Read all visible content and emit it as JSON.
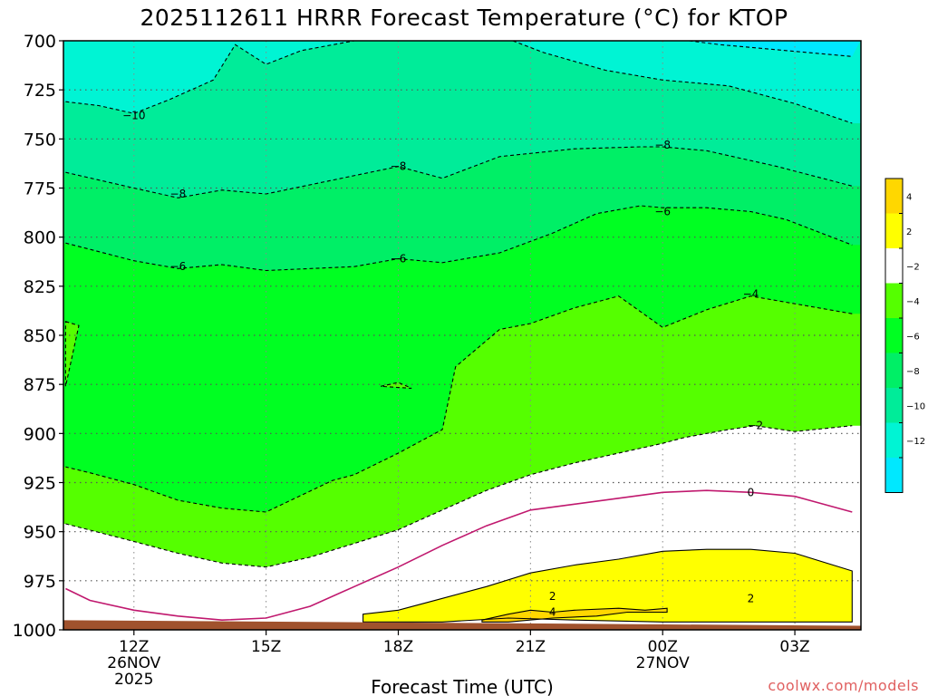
{
  "chart_data": {
    "type": "contour",
    "title": "2025112611 HRRR Forecast Temperature (°C) for KTOP",
    "xlabel": "Forecast Time (UTC)",
    "ylabel": "",
    "credit": "coolwx.com/models",
    "y_ticks": [
      "700",
      "725",
      "750",
      "775",
      "800",
      "825",
      "850",
      "875",
      "900",
      "925",
      "950",
      "975",
      "1000"
    ],
    "y_range_hpa": [
      700,
      1000
    ],
    "x_range_hours": [
      -1.6,
      16.5
    ],
    "x_ticks": [
      {
        "hour": 0,
        "lines": [
          "12Z",
          "26NOV",
          "2025"
        ]
      },
      {
        "hour": 3,
        "lines": [
          "15Z"
        ]
      },
      {
        "hour": 6,
        "lines": [
          "18Z"
        ]
      },
      {
        "hour": 9,
        "lines": [
          "21Z"
        ]
      },
      {
        "hour": 12,
        "lines": [
          "00Z",
          "27NOV"
        ]
      },
      {
        "hour": 15,
        "lines": [
          "03Z"
        ]
      }
    ],
    "colorbar": {
      "ticks": [
        "4",
        "2",
        "−2",
        "−4",
        "−6",
        "−8",
        "−10",
        "−12"
      ],
      "colors_top_to_bottom": [
        "#ffd700",
        "#ffff00",
        "#ffffff",
        "#55ff00",
        "#00ff22",
        "#00ef66",
        "#00ec99",
        "#00f4d4",
        "#00e8ff"
      ]
    },
    "fill_colors": {
      "lt_-12": "#00e8ff",
      "-12_-10": "#00f4d4",
      "-10_-8": "#00ec99",
      "-8_-6": "#00ef66",
      "-6_-4": "#00ff22",
      "-4_-2": "#55ff00",
      "-2_2": "#ffffff",
      "2_4": "#ffff00",
      "gt_4": "#ffd700",
      "ground": "#a0522d"
    },
    "contours": [
      {
        "value": -12,
        "label": "",
        "points": [
          [
            12.6,
            700
          ],
          [
            13.3,
            702
          ],
          [
            14.8,
            705
          ],
          [
            16.3,
            708
          ]
        ]
      },
      {
        "value": -10,
        "label": "−10",
        "label_at": [
          0,
          738
        ],
        "points": [
          [
            -1.55,
            731
          ],
          [
            -0.8,
            733
          ],
          [
            0,
            737
          ],
          [
            0.8,
            730
          ],
          [
            1.8,
            720
          ],
          [
            2.3,
            702
          ],
          [
            3.0,
            712
          ],
          [
            3.8,
            705
          ],
          [
            5.0,
            700
          ]
        ]
      },
      {
        "value": -10,
        "label": "",
        "points": [
          [
            8.6,
            700
          ],
          [
            9.3,
            706
          ],
          [
            10.7,
            715
          ],
          [
            12.0,
            720
          ],
          [
            13.5,
            723
          ],
          [
            15.0,
            732
          ],
          [
            16.3,
            742
          ]
        ]
      },
      {
        "value": -8,
        "label": "−8",
        "label_at": [
          1.0,
          778
        ],
        "secondary_labels": [
          [
            6.0,
            764
          ],
          [
            12.0,
            753
          ]
        ],
        "points": [
          [
            -1.55,
            767
          ],
          [
            0,
            775
          ],
          [
            1.0,
            780
          ],
          [
            2.0,
            776
          ],
          [
            3.0,
            778
          ],
          [
            6.0,
            764
          ],
          [
            7.0,
            770
          ],
          [
            8.3,
            759
          ],
          [
            10.0,
            755
          ],
          [
            11.5,
            754
          ],
          [
            12.0,
            754
          ],
          [
            13.0,
            756
          ],
          [
            14.6,
            764
          ],
          [
            16.3,
            774
          ]
        ]
      },
      {
        "value": -6,
        "label": "−6",
        "label_at": [
          1.0,
          815
        ],
        "secondary_labels": [
          [
            6.0,
            811
          ],
          [
            12.0,
            787
          ]
        ],
        "points": [
          [
            -1.55,
            803
          ],
          [
            0,
            812
          ],
          [
            1.0,
            816
          ],
          [
            2.0,
            814
          ],
          [
            3.0,
            817
          ],
          [
            5.0,
            815
          ],
          [
            6.0,
            811
          ],
          [
            7.0,
            813
          ],
          [
            8.3,
            808
          ],
          [
            9.5,
            798
          ],
          [
            10.5,
            788
          ],
          [
            11.5,
            784
          ],
          [
            12.0,
            785
          ],
          [
            13.0,
            785
          ],
          [
            14.0,
            787
          ],
          [
            14.8,
            791
          ],
          [
            16.3,
            804
          ]
        ]
      },
      {
        "value": -4,
        "label": "−4",
        "label_at": [
          14.0,
          829
        ],
        "points": [
          [
            -1.55,
            843
          ],
          [
            -1.25,
            845
          ],
          [
            -1.55,
            876
          ]
        ]
      },
      {
        "value": -4,
        "label": "",
        "points": [
          [
            5.6,
            876
          ],
          [
            6.0,
            874
          ],
          [
            6.3,
            877
          ],
          [
            5.6,
            876
          ]
        ]
      },
      {
        "value": -4,
        "label": "",
        "points": [
          [
            16.3,
            839
          ],
          [
            14.0,
            830
          ],
          [
            13.0,
            837
          ],
          [
            12.0,
            846
          ],
          [
            11.0,
            830
          ],
          [
            10.0,
            836
          ],
          [
            9.0,
            844
          ],
          [
            8.3,
            847
          ],
          [
            7.3,
            866
          ],
          [
            7.0,
            898
          ],
          [
            6.0,
            910
          ],
          [
            5.0,
            921
          ],
          [
            4.5,
            924
          ],
          [
            3.0,
            940
          ],
          [
            2.0,
            938
          ],
          [
            1.0,
            934
          ],
          [
            0,
            926
          ],
          [
            -1.0,
            920
          ],
          [
            -1.55,
            917
          ]
        ]
      },
      {
        "value": -2,
        "label": "−2",
        "label_at": [
          14.1,
          896
        ],
        "points": [
          [
            -1.55,
            946
          ],
          [
            0,
            955
          ],
          [
            1.0,
            961
          ],
          [
            2.0,
            966
          ],
          [
            3.0,
            968
          ],
          [
            4.0,
            963
          ],
          [
            6.0,
            949
          ],
          [
            7.0,
            939
          ],
          [
            8.0,
            929
          ],
          [
            9.0,
            921
          ],
          [
            10.0,
            915
          ],
          [
            11.0,
            910
          ],
          [
            12.0,
            905
          ],
          [
            12.5,
            902
          ],
          [
            13.5,
            898
          ],
          [
            14.1,
            896
          ],
          [
            15.0,
            899
          ],
          [
            16.3,
            896
          ]
        ]
      },
      {
        "value": 0,
        "label": "0",
        "label_at": [
          14.0,
          930
        ],
        "points": [
          [
            -1.55,
            979
          ],
          [
            -1.0,
            985
          ],
          [
            0,
            990
          ],
          [
            1.0,
            993
          ],
          [
            2.0,
            995
          ],
          [
            3.0,
            994
          ],
          [
            4.0,
            988
          ],
          [
            5.0,
            978
          ],
          [
            6.0,
            968
          ],
          [
            7.0,
            957
          ],
          [
            8.0,
            947
          ],
          [
            9.0,
            939
          ],
          [
            10.0,
            936
          ],
          [
            11.0,
            933
          ],
          [
            12.0,
            930
          ],
          [
            13.0,
            929
          ],
          [
            14.0,
            930
          ],
          [
            15.0,
            932
          ],
          [
            16.3,
            940
          ]
        ]
      },
      {
        "value": 2,
        "label": "2",
        "label_at": [
          9.5,
          983
        ],
        "secondary_labels": [
          [
            14.0,
            984
          ]
        ],
        "points": [
          [
            5.2,
            992
          ],
          [
            6.0,
            990
          ],
          [
            7.0,
            984
          ],
          [
            8.0,
            978
          ],
          [
            9.0,
            971
          ],
          [
            10.0,
            967
          ],
          [
            11.0,
            964
          ],
          [
            12.0,
            960
          ],
          [
            13.0,
            959
          ],
          [
            14.0,
            959
          ],
          [
            15.0,
            961
          ],
          [
            16.3,
            970
          ],
          [
            16.3,
            996
          ],
          [
            14.3,
            996
          ],
          [
            13.0,
            996
          ],
          [
            12.0,
            996
          ],
          [
            10.0,
            995
          ],
          [
            8.5,
            994
          ],
          [
            7.0,
            996
          ],
          [
            5.2,
            996
          ]
        ]
      },
      {
        "value": 4,
        "label": "4",
        "label_at": [
          9.5,
          991
        ],
        "points": [
          [
            7.9,
            995
          ],
          [
            8.5,
            992
          ],
          [
            9.0,
            990
          ],
          [
            9.5,
            991
          ],
          [
            10.0,
            990
          ],
          [
            11.0,
            989
          ],
          [
            11.6,
            990
          ],
          [
            12.1,
            989
          ],
          [
            12.1,
            991
          ],
          [
            11.2,
            991
          ],
          [
            10.5,
            993
          ],
          [
            9.5,
            994
          ],
          [
            8.5,
            996
          ],
          [
            7.9,
            996
          ]
        ]
      }
    ],
    "ground": {
      "top_hpa": 995,
      "right_edge_hpa": 998
    }
  }
}
